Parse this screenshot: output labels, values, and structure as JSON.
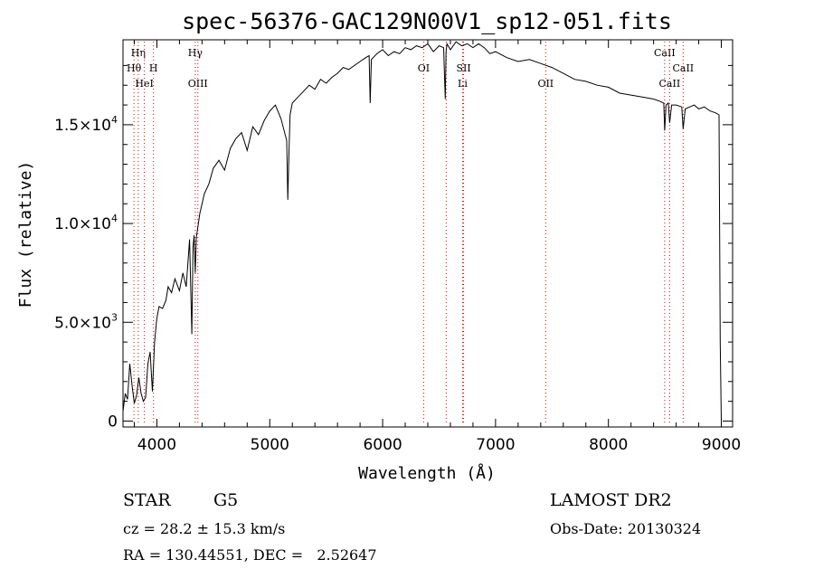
{
  "chart_data": {
    "type": "line",
    "title": "spec-56376-GAC129N00V1_sp12-051.fits",
    "xlabel": "Wavelength (Å)",
    "ylabel": "Flux (relative)",
    "xlim": [
      3700,
      9100
    ],
    "ylim": [
      -300,
      19300
    ],
    "x_ticks": [
      {
        "value": 4000,
        "label": "4000"
      },
      {
        "value": 5000,
        "label": "5000"
      },
      {
        "value": 6000,
        "label": "6000"
      },
      {
        "value": 7000,
        "label": "7000"
      },
      {
        "value": 8000,
        "label": "8000"
      },
      {
        "value": 9000,
        "label": "9000"
      }
    ],
    "y_ticks": [
      {
        "value": 0,
        "label": "0",
        "exp": ""
      },
      {
        "value": 5000,
        "label": "5.0×10",
        "exp": "3"
      },
      {
        "value": 10000,
        "label": "1.0×10",
        "exp": "4"
      },
      {
        "value": 15000,
        "label": "1.5×10",
        "exp": "4"
      }
    ],
    "grid": false,
    "series": [
      {
        "color": "#000000",
        "x": [
          3700,
          3720,
          3740,
          3760,
          3780,
          3800,
          3820,
          3840,
          3860,
          3880,
          3900,
          3920,
          3940,
          3960,
          3980,
          4000,
          4020,
          4050,
          4080,
          4100,
          4130,
          4160,
          4200,
          4230,
          4260,
          4290,
          4310,
          4320,
          4330,
          4340,
          4350,
          4380,
          4420,
          4460,
          4500,
          4550,
          4600,
          4650,
          4700,
          4750,
          4800,
          4850,
          4900,
          4950,
          5000,
          5050,
          5100,
          5150,
          5160,
          5170,
          5180,
          5200,
          5250,
          5300,
          5350,
          5400,
          5450,
          5500,
          5550,
          5600,
          5650,
          5700,
          5750,
          5800,
          5850,
          5880,
          5890,
          5900,
          5950,
          6000,
          6050,
          6100,
          6150,
          6200,
          6250,
          6300,
          6350,
          6400,
          6450,
          6500,
          6540,
          6555,
          6562,
          6570,
          6600,
          6650,
          6700,
          6750,
          6800,
          6850,
          6900,
          6950,
          7000,
          7100,
          7200,
          7300,
          7400,
          7500,
          7600,
          7700,
          7800,
          7900,
          8000,
          8100,
          8200,
          8300,
          8400,
          8450,
          8490,
          8498,
          8510,
          8530,
          8542,
          8560,
          8600,
          8650,
          8662,
          8680,
          8720,
          8760,
          8800,
          8850,
          8900,
          8950,
          8980,
          8990,
          9000
        ],
        "y": [
          500,
          1400,
          1100,
          2900,
          1800,
          900,
          1300,
          2200,
          1400,
          1000,
          1200,
          2900,
          3500,
          1500,
          4000,
          5200,
          5800,
          5700,
          6100,
          6800,
          6500,
          7200,
          6600,
          7500,
          6800,
          9200,
          4400,
          8800,
          9400,
          7500,
          9300,
          10500,
          11500,
          12000,
          12800,
          13200,
          12700,
          13800,
          14300,
          14600,
          13700,
          14900,
          14500,
          15200,
          15700,
          16000,
          15300,
          14200,
          11200,
          13600,
          15500,
          16100,
          16400,
          16700,
          17000,
          16800,
          17300,
          17100,
          17400,
          17600,
          17900,
          17800,
          18000,
          18200,
          18400,
          18500,
          16100,
          18300,
          18600,
          18800,
          18500,
          18700,
          18600,
          18900,
          18800,
          19000,
          18900,
          19100,
          18700,
          19000,
          18900,
          16300,
          18700,
          19100,
          18800,
          19200,
          19000,
          19100,
          18900,
          19100,
          18900,
          18600,
          18700,
          18400,
          18200,
          18300,
          18100,
          17900,
          17600,
          17300,
          17200,
          17000,
          16900,
          16600,
          16500,
          16400,
          16300,
          16200,
          16100,
          14700,
          16000,
          16100,
          15100,
          16000,
          16000,
          15900,
          14800,
          15800,
          15900,
          16000,
          15800,
          15900,
          15700,
          15600,
          15500,
          4000,
          0
        ]
      }
    ],
    "lines": [
      {
        "x": 3797,
        "label": "Hθ",
        "row": 2
      },
      {
        "x": 3835,
        "label": "Hη",
        "row": 1
      },
      {
        "x": 3889,
        "label": "HeI",
        "row": 3
      },
      {
        "x": 3970,
        "label": "H",
        "row": 2
      },
      {
        "x": 4340,
        "label": "Hγ",
        "row": 1
      },
      {
        "x": 4363,
        "label": "OIII",
        "row": 3
      },
      {
        "x": 6363,
        "label": "OI",
        "row": 2
      },
      {
        "x": 6563,
        "label": "",
        "row": 0
      },
      {
        "x": 6708,
        "label": "Li",
        "row": 3
      },
      {
        "x": 6717,
        "label": "SII",
        "row": 2
      },
      {
        "x": 7444,
        "label": "OII",
        "row": 3
      },
      {
        "x": 8498,
        "label": "CaII",
        "row": 1
      },
      {
        "x": 8542,
        "label": "CaII",
        "row": 3
      },
      {
        "x": 8662,
        "label": "CaII",
        "row": 2
      }
    ]
  },
  "info": {
    "object_type": "STAR",
    "subclass": "G5",
    "survey": "LAMOST DR2",
    "cz": "cz = 28.2 ± 15.3 km/s",
    "obs_date": "Obs-Date: 20130324",
    "coords": "RA = 130.44551, DEC =   2.52647"
  }
}
